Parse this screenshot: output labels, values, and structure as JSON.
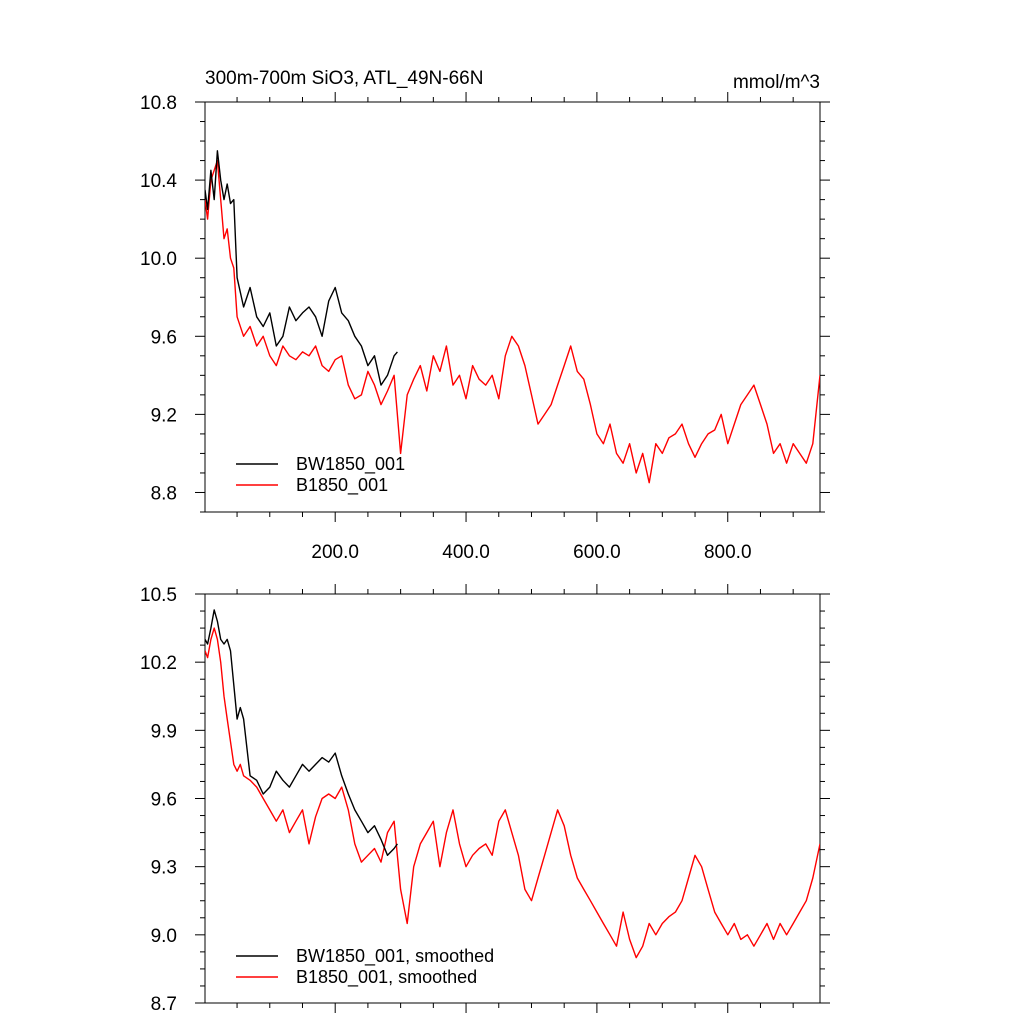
{
  "chart_data": [
    {
      "type": "line",
      "title": "300m-700m SiO3, ATL_49N-66N",
      "units": "mmol/m^3",
      "xlim": [
        1,
        941
      ],
      "ylim": [
        8.7,
        10.8
      ],
      "xticks": [
        200,
        400,
        600,
        800
      ],
      "xtick_labels": [
        "200.0",
        "400.0",
        "600.0",
        "800.0"
      ],
      "yticks": [
        8.8,
        9.2,
        9.6,
        10.0,
        10.4,
        10.8
      ],
      "ytick_labels": [
        "8.8",
        "9.2",
        "9.6",
        "10.0",
        "10.4",
        "10.8"
      ],
      "legend_position": "bottom-left",
      "series": [
        {
          "name": "BW1850_001",
          "color": "#000000",
          "x": [
            1,
            5,
            10,
            15,
            20,
            25,
            30,
            35,
            40,
            45,
            50,
            60,
            70,
            80,
            90,
            100,
            110,
            120,
            130,
            140,
            150,
            160,
            170,
            180,
            190,
            200,
            210,
            220,
            230,
            240,
            250,
            260,
            270,
            280,
            290,
            295
          ],
          "y": [
            10.35,
            10.25,
            10.45,
            10.3,
            10.55,
            10.4,
            10.3,
            10.38,
            10.28,
            10.3,
            9.9,
            9.75,
            9.85,
            9.7,
            9.65,
            9.72,
            9.55,
            9.6,
            9.75,
            9.68,
            9.72,
            9.75,
            9.7,
            9.6,
            9.78,
            9.85,
            9.72,
            9.68,
            9.6,
            9.55,
            9.45,
            9.5,
            9.35,
            9.4,
            9.5,
            9.52
          ]
        },
        {
          "name": "B1850_001",
          "color": "#ff0000",
          "x": [
            1,
            5,
            10,
            15,
            20,
            25,
            30,
            35,
            40,
            45,
            50,
            60,
            70,
            80,
            90,
            100,
            110,
            120,
            130,
            140,
            150,
            160,
            170,
            180,
            190,
            200,
            210,
            220,
            230,
            240,
            250,
            260,
            270,
            280,
            290,
            300,
            310,
            320,
            330,
            340,
            350,
            360,
            370,
            380,
            390,
            400,
            410,
            420,
            430,
            440,
            450,
            460,
            470,
            480,
            490,
            500,
            510,
            520,
            530,
            540,
            550,
            560,
            570,
            580,
            590,
            600,
            610,
            620,
            630,
            640,
            650,
            660,
            670,
            680,
            690,
            700,
            710,
            720,
            730,
            740,
            750,
            760,
            770,
            780,
            790,
            800,
            810,
            820,
            830,
            840,
            850,
            860,
            870,
            880,
            890,
            900,
            910,
            920,
            930,
            941
          ],
          "y": [
            10.3,
            10.2,
            10.4,
            10.45,
            10.5,
            10.3,
            10.1,
            10.15,
            10.0,
            9.95,
            9.7,
            9.6,
            9.65,
            9.55,
            9.6,
            9.5,
            9.45,
            9.55,
            9.5,
            9.48,
            9.52,
            9.5,
            9.55,
            9.45,
            9.42,
            9.48,
            9.5,
            9.35,
            9.28,
            9.3,
            9.42,
            9.35,
            9.25,
            9.32,
            9.4,
            9.0,
            9.3,
            9.38,
            9.45,
            9.32,
            9.5,
            9.42,
            9.55,
            9.35,
            9.4,
            9.28,
            9.45,
            9.38,
            9.35,
            9.4,
            9.28,
            9.5,
            9.6,
            9.55,
            9.45,
            9.3,
            9.15,
            9.2,
            9.25,
            9.35,
            9.45,
            9.55,
            9.42,
            9.38,
            9.25,
            9.1,
            9.05,
            9.15,
            9.0,
            8.95,
            9.05,
            8.9,
            9.0,
            8.85,
            9.05,
            9.0,
            9.08,
            9.1,
            9.15,
            9.05,
            8.98,
            9.05,
            9.1,
            9.12,
            9.2,
            9.05,
            9.15,
            9.25,
            9.3,
            9.35,
            9.25,
            9.15,
            9.0,
            9.05,
            8.95,
            9.05,
            9.0,
            8.95,
            9.05,
            9.4
          ]
        }
      ]
    },
    {
      "type": "line",
      "title": "",
      "xlim": [
        1,
        941
      ],
      "ylim": [
        8.7,
        10.5
      ],
      "xticks": [
        200,
        400,
        600,
        800
      ],
      "yticks": [
        8.7,
        9.0,
        9.3,
        9.6,
        9.9,
        10.2,
        10.5
      ],
      "ytick_labels": [
        "8.7",
        "9.0",
        "9.3",
        "9.6",
        "9.9",
        "10.2",
        "10.5"
      ],
      "legend_position": "bottom-left",
      "series": [
        {
          "name": "BW1850_001, smoothed",
          "color": "#000000",
          "x": [
            1,
            5,
            10,
            15,
            20,
            25,
            30,
            35,
            40,
            45,
            50,
            55,
            60,
            70,
            80,
            90,
            100,
            110,
            120,
            130,
            140,
            150,
            160,
            170,
            180,
            190,
            200,
            210,
            220,
            230,
            240,
            250,
            260,
            270,
            280,
            290,
            295
          ],
          "y": [
            10.3,
            10.28,
            10.35,
            10.43,
            10.38,
            10.3,
            10.28,
            10.3,
            10.25,
            10.1,
            9.95,
            10.0,
            9.95,
            9.7,
            9.68,
            9.62,
            9.65,
            9.72,
            9.68,
            9.65,
            9.7,
            9.75,
            9.72,
            9.75,
            9.78,
            9.76,
            9.8,
            9.7,
            9.62,
            9.55,
            9.5,
            9.45,
            9.48,
            9.42,
            9.35,
            9.38,
            9.4
          ]
        },
        {
          "name": "B1850_001, smoothed",
          "color": "#ff0000",
          "x": [
            1,
            5,
            10,
            15,
            20,
            25,
            30,
            35,
            40,
            45,
            50,
            55,
            60,
            70,
            80,
            90,
            100,
            110,
            120,
            130,
            140,
            150,
            160,
            170,
            180,
            190,
            200,
            210,
            220,
            230,
            240,
            250,
            260,
            270,
            280,
            290,
            300,
            310,
            320,
            330,
            340,
            350,
            360,
            370,
            380,
            390,
            400,
            410,
            420,
            430,
            440,
            450,
            460,
            470,
            480,
            490,
            500,
            510,
            520,
            530,
            540,
            550,
            560,
            570,
            580,
            590,
            600,
            610,
            620,
            630,
            640,
            650,
            660,
            670,
            680,
            690,
            700,
            710,
            720,
            730,
            740,
            750,
            760,
            770,
            780,
            790,
            800,
            810,
            820,
            830,
            840,
            850,
            860,
            870,
            880,
            890,
            900,
            910,
            920,
            930,
            941
          ],
          "y": [
            10.25,
            10.22,
            10.3,
            10.35,
            10.3,
            10.2,
            10.05,
            9.95,
            9.85,
            9.75,
            9.72,
            9.75,
            9.7,
            9.68,
            9.65,
            9.6,
            9.55,
            9.5,
            9.55,
            9.45,
            9.5,
            9.55,
            9.4,
            9.52,
            9.6,
            9.62,
            9.6,
            9.65,
            9.55,
            9.4,
            9.32,
            9.35,
            9.38,
            9.32,
            9.45,
            9.5,
            9.2,
            9.05,
            9.3,
            9.4,
            9.45,
            9.5,
            9.3,
            9.45,
            9.55,
            9.4,
            9.3,
            9.35,
            9.38,
            9.4,
            9.35,
            9.5,
            9.55,
            9.45,
            9.35,
            9.2,
            9.15,
            9.25,
            9.35,
            9.45,
            9.55,
            9.48,
            9.35,
            9.25,
            9.2,
            9.15,
            9.1,
            9.05,
            9.0,
            8.95,
            9.1,
            8.98,
            8.9,
            8.95,
            9.05,
            9.0,
            9.05,
            9.08,
            9.1,
            9.15,
            9.25,
            9.35,
            9.3,
            9.2,
            9.1,
            9.05,
            9.0,
            9.05,
            8.98,
            9.0,
            8.95,
            9.0,
            9.05,
            8.98,
            9.05,
            9.0,
            9.05,
            9.1,
            9.15,
            9.25,
            9.4
          ]
        }
      ]
    }
  ]
}
